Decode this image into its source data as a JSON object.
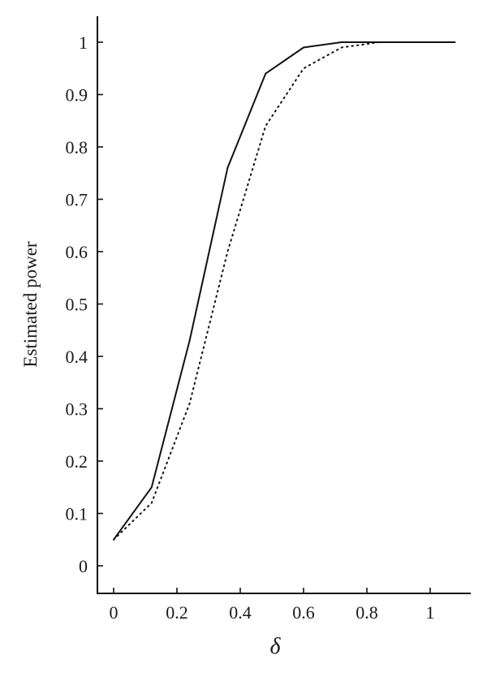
{
  "chart_data": {
    "type": "line",
    "xlabel": "δ",
    "ylabel": "Estimated power",
    "xlim": [
      -0.02,
      1.12
    ],
    "ylim": [
      -0.05,
      1.05
    ],
    "x_ticks": [
      0,
      0.2,
      0.4,
      0.6,
      0.8,
      1
    ],
    "x_tick_labels": [
      "0",
      "0.2",
      "0.4",
      "0.6",
      "0.8",
      "1"
    ],
    "y_ticks": [
      0,
      0.1,
      0.2,
      0.3,
      0.4,
      0.5,
      0.6,
      0.7,
      0.8,
      0.9,
      1
    ],
    "y_tick_labels": [
      "0",
      "0.1",
      "0.2",
      "0.3",
      "0.4",
      "0.5",
      "0.6",
      "0.7",
      "0.8",
      "0.9",
      "1"
    ],
    "grid": false,
    "legend": "none",
    "series": [
      {
        "line_style": "solid",
        "color": "#111111",
        "x": [
          0,
          0.12,
          0.24,
          0.36,
          0.48,
          0.6,
          0.72,
          0.84,
          0.96,
          1.08
        ],
        "y": [
          0.05,
          0.15,
          0.43,
          0.76,
          0.94,
          0.99,
          1.0,
          1.0,
          1.0,
          1.0
        ]
      },
      {
        "line_style": "dotted",
        "color": "#111111",
        "x": [
          0,
          0.12,
          0.24,
          0.36,
          0.48,
          0.6,
          0.72,
          0.84,
          0.96,
          1.08
        ],
        "y": [
          0.05,
          0.12,
          0.31,
          0.6,
          0.84,
          0.95,
          0.99,
          1.0,
          1.0,
          1.0
        ]
      }
    ]
  }
}
